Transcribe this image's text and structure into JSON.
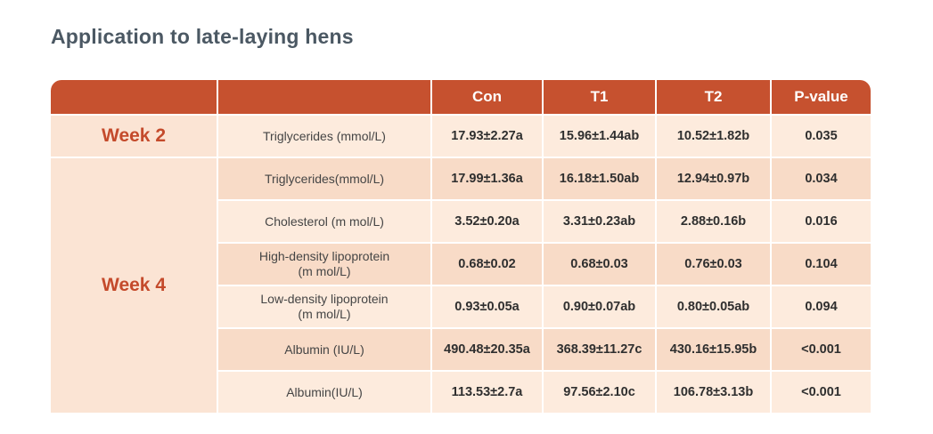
{
  "page": {
    "title": "Application to late-laying hens"
  },
  "colors": {
    "header_bg": "#c6512f",
    "header_text": "#ffffff",
    "title_text": "#4b5863",
    "week_text": "#c44a2b",
    "week_col_bg": "#fbe4d4",
    "row_light": "#fdebdd",
    "row_dark": "#f8dbc7",
    "label_text": "#454545",
    "value_text": "#2f2f2f"
  },
  "table": {
    "header": {
      "con": "Con",
      "t1": "T1",
      "t2": "T2",
      "p": "P-value"
    },
    "groups": [
      {
        "label": "Week 2",
        "rows": [
          {
            "param": "Triglycerides (mmol/L)",
            "con": "17.93±2.27a",
            "t1": "15.96±1.44ab",
            "t2": "10.52±1.82b",
            "p": "0.035"
          }
        ]
      },
      {
        "label": "Week 4",
        "rows": [
          {
            "param": "Triglycerides(mmol/L)",
            "con": "17.99±1.36a",
            "t1": "16.18±1.50ab",
            "t2": "12.94±0.97b",
            "p": "0.034"
          },
          {
            "param": "Cholesterol (m mol/L)",
            "con": "3.52±0.20a",
            "t1": "3.31±0.23ab",
            "t2": "2.88±0.16b",
            "p": "0.016"
          },
          {
            "param": "High-density lipoprotein\n(m mol/L)",
            "con": "0.68±0.02",
            "t1": "0.68±0.03",
            "t2": "0.76±0.03",
            "p": "0.104"
          },
          {
            "param": "Low-density lipoprotein\n(m mol/L)",
            "con": "0.93±0.05a",
            "t1": "0.90±0.07ab",
            "t2": "0.80±0.05ab",
            "p": "0.094"
          },
          {
            "param": "Albumin (IU/L)",
            "con": "490.48±20.35a",
            "t1": "368.39±11.27c",
            "t2": "430.16±15.95b",
            "p": "<0.001"
          },
          {
            "param": "Albumin(IU/L)",
            "con": "113.53±2.7a",
            "t1": "97.56±2.10c",
            "t2": "106.78±3.13b",
            "p": "<0.001"
          }
        ]
      }
    ]
  }
}
